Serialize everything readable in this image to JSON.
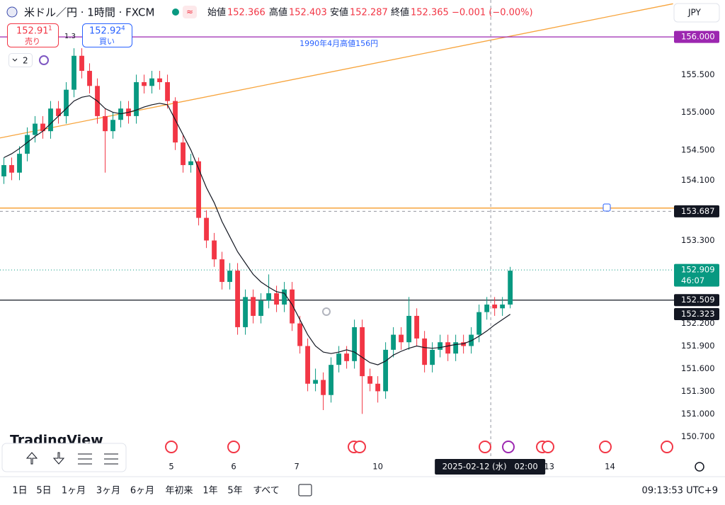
{
  "header": {
    "symbol": "米ドル／円 · 1時間 · FXCM",
    "ohlc": [
      {
        "label": "始値",
        "value": "152.366"
      },
      {
        "label": "高値",
        "value": "152.403"
      },
      {
        "label": "安値",
        "value": "152.287"
      },
      {
        "label": "終値",
        "value": "152.365"
      }
    ],
    "change": "−0.001 (−0.00%)",
    "currency": "JPY"
  },
  "trade": {
    "sell": {
      "price": "152.91",
      "pip": "1",
      "label": "売り"
    },
    "spread": "1.3",
    "buy": {
      "price": "152.92",
      "pip": "4",
      "label": "買い"
    }
  },
  "indicators_count": "2",
  "logo": "TradingView",
  "chart_data": {
    "type": "candlestick",
    "up_color": "#089981",
    "down_color": "#f23645",
    "ylim": [
      150.43,
      156.49
    ],
    "xlim": [
      0,
      86.8
    ],
    "yticks": [
      {
        "value": 155.5,
        "label": "155.500"
      },
      {
        "value": 155.0,
        "label": "155.000"
      },
      {
        "value": 154.5,
        "label": "154.500"
      },
      {
        "value": 154.1,
        "label": "154.100"
      },
      {
        "value": 153.3,
        "label": "153.300"
      },
      {
        "value": 152.2,
        "label": "152.200"
      },
      {
        "value": 151.9,
        "label": "151.900"
      },
      {
        "value": 151.6,
        "label": "151.600"
      },
      {
        "value": 151.3,
        "label": "151.300"
      },
      {
        "value": 151.0,
        "label": "151.000"
      },
      {
        "value": 150.7,
        "label": "150.700"
      }
    ],
    "xticks": [
      {
        "value": 22.0,
        "label": "5"
      },
      {
        "value": 30.0,
        "label": "6"
      },
      {
        "value": 38.1,
        "label": "7"
      },
      {
        "value": 48.5,
        "label": "10"
      },
      {
        "value": 70.5,
        "label": "13"
      },
      {
        "value": 78.3,
        "label": "14"
      }
    ],
    "ohlc": [
      [
        154.15,
        154.4,
        154.05,
        154.3
      ],
      [
        154.3,
        154.4,
        154.1,
        154.2
      ],
      [
        154.2,
        154.55,
        154.1,
        154.45
      ],
      [
        154.45,
        154.8,
        154.35,
        154.7
      ],
      [
        154.7,
        154.95,
        154.6,
        154.85
      ],
      [
        154.85,
        154.95,
        154.65,
        154.75
      ],
      [
        154.75,
        155.15,
        154.65,
        155.05
      ],
      [
        155.05,
        155.15,
        154.85,
        154.95
      ],
      [
        154.95,
        155.4,
        154.85,
        155.3
      ],
      [
        155.3,
        155.85,
        155.2,
        155.75
      ],
      [
        155.75,
        155.85,
        155.45,
        155.55
      ],
      [
        155.55,
        155.65,
        155.25,
        155.35
      ],
      [
        155.35,
        155.45,
        154.85,
        154.95
      ],
      [
        154.95,
        155.05,
        154.2,
        154.75
      ],
      [
        154.75,
        155.0,
        154.65,
        154.9
      ],
      [
        154.9,
        155.15,
        154.8,
        155.05
      ],
      [
        155.05,
        155.15,
        154.85,
        154.95
      ],
      [
        154.95,
        155.5,
        154.85,
        155.4
      ],
      [
        155.4,
        155.5,
        155.25,
        155.35
      ],
      [
        155.35,
        155.55,
        155.25,
        155.45
      ],
      [
        155.45,
        155.55,
        155.3,
        155.4
      ],
      [
        155.4,
        155.5,
        155.05,
        155.15
      ],
      [
        155.15,
        155.2,
        154.5,
        154.6
      ],
      [
        154.6,
        154.7,
        154.2,
        154.3
      ],
      [
        154.3,
        154.45,
        154.2,
        154.35
      ],
      [
        154.35,
        154.4,
        153.5,
        153.6
      ],
      [
        153.6,
        153.7,
        153.2,
        153.3
      ],
      [
        153.3,
        153.4,
        152.95,
        153.05
      ],
      [
        153.05,
        153.15,
        152.65,
        152.75
      ],
      [
        152.75,
        153.0,
        152.65,
        152.9
      ],
      [
        152.9,
        153.0,
        152.05,
        152.15
      ],
      [
        152.15,
        152.65,
        152.05,
        152.55
      ],
      [
        152.55,
        152.65,
        152.2,
        152.3
      ],
      [
        152.3,
        152.6,
        152.2,
        152.5
      ],
      [
        152.5,
        152.85,
        152.4,
        152.6
      ],
      [
        152.6,
        152.7,
        152.35,
        152.45
      ],
      [
        152.45,
        152.75,
        152.35,
        152.65
      ],
      [
        152.65,
        152.75,
        152.1,
        152.2
      ],
      [
        152.2,
        152.3,
        151.8,
        151.9
      ],
      [
        151.9,
        152.0,
        151.3,
        151.4
      ],
      [
        151.4,
        151.6,
        151.3,
        151.45
      ],
      [
        151.45,
        151.55,
        151.05,
        151.25
      ],
      [
        151.25,
        151.75,
        151.15,
        151.65
      ],
      [
        151.65,
        151.9,
        151.55,
        151.8
      ],
      [
        151.8,
        151.9,
        151.6,
        151.7
      ],
      [
        151.7,
        152.25,
        151.6,
        152.15
      ],
      [
        152.15,
        152.25,
        151.0,
        151.5
      ],
      [
        151.5,
        151.6,
        151.3,
        151.4
      ],
      [
        151.4,
        151.5,
        151.15,
        151.3
      ],
      [
        151.3,
        151.95,
        151.2,
        151.85
      ],
      [
        151.85,
        152.15,
        151.75,
        152.05
      ],
      [
        152.05,
        152.15,
        151.85,
        151.95
      ],
      [
        151.95,
        152.55,
        151.85,
        152.3
      ],
      [
        152.3,
        152.4,
        151.9,
        152.0
      ],
      [
        152.0,
        152.1,
        151.55,
        151.65
      ],
      [
        151.65,
        151.95,
        151.55,
        151.85
      ],
      [
        151.85,
        152.05,
        151.75,
        151.95
      ],
      [
        151.95,
        152.05,
        151.7,
        151.8
      ],
      [
        151.8,
        152.05,
        151.7,
        151.95
      ],
      [
        151.95,
        152.05,
        151.8,
        151.9
      ],
      [
        151.9,
        152.15,
        151.8,
        152.05
      ],
      [
        152.05,
        152.45,
        151.95,
        152.35
      ],
      [
        152.35,
        152.55,
        152.25,
        152.45
      ],
      [
        152.45,
        152.55,
        152.3,
        152.4
      ],
      [
        152.4,
        152.55,
        152.3,
        152.45
      ],
      [
        152.45,
        152.95,
        152.4,
        152.9
      ]
    ],
    "ma": {
      "color": "#131722",
      "values": [
        154.4,
        154.45,
        154.52,
        154.6,
        154.68,
        154.75,
        154.85,
        154.95,
        155.05,
        155.15,
        155.2,
        155.22,
        155.15,
        155.05,
        155.0,
        154.98,
        155.0,
        155.03,
        155.07,
        155.1,
        155.12,
        155.1,
        154.9,
        154.7,
        154.5,
        154.25,
        154.0,
        153.8,
        153.55,
        153.35,
        153.15,
        153.0,
        152.85,
        152.75,
        152.68,
        152.62,
        152.6,
        152.45,
        152.25,
        152.05,
        151.9,
        151.82,
        151.8,
        151.82,
        151.85,
        151.82,
        151.75,
        151.68,
        151.65,
        151.7,
        151.78,
        151.83,
        151.87,
        151.9,
        151.88,
        151.87,
        151.88,
        151.9,
        151.92,
        151.93,
        151.97,
        152.03,
        152.1,
        152.18,
        152.25,
        152.32
      ]
    },
    "trendline": {
      "x": [
        0,
        86.4
      ],
      "y": [
        154.66,
        156.44
      ],
      "color": "#f7a43c"
    },
    "hlines": [
      {
        "value": 153.73,
        "color": "#f7a43c"
      }
    ],
    "levels": [
      {
        "value": 156.0,
        "label": "156.000",
        "color": "#9c27b0",
        "line": "solid"
      },
      {
        "value": 153.687,
        "label": "153.687",
        "color": "#131722",
        "line": "dashed"
      },
      {
        "value": 152.909,
        "label": "152.909",
        "sub": "46:07",
        "color": "#089981",
        "line": "dotted"
      },
      {
        "value": 152.509,
        "label": "152.509",
        "color": "#131722",
        "line": "solid"
      },
      {
        "value": 152.323,
        "label": "152.323",
        "color": "#131722"
      }
    ],
    "annotation": {
      "text": "1990年4月高値156円",
      "color": "#2962ff"
    },
    "crosshair": {
      "x": 63.0,
      "label": "2025-02-12 (水)   02:00"
    }
  },
  "toolbar": {
    "ranges": [
      "1日",
      "5日",
      "1ヶ月",
      "3ヶ月",
      "6ヶ月",
      "年初来",
      "1年",
      "5年",
      "すべて"
    ],
    "clock": "09:13:53 UTC+9"
  }
}
